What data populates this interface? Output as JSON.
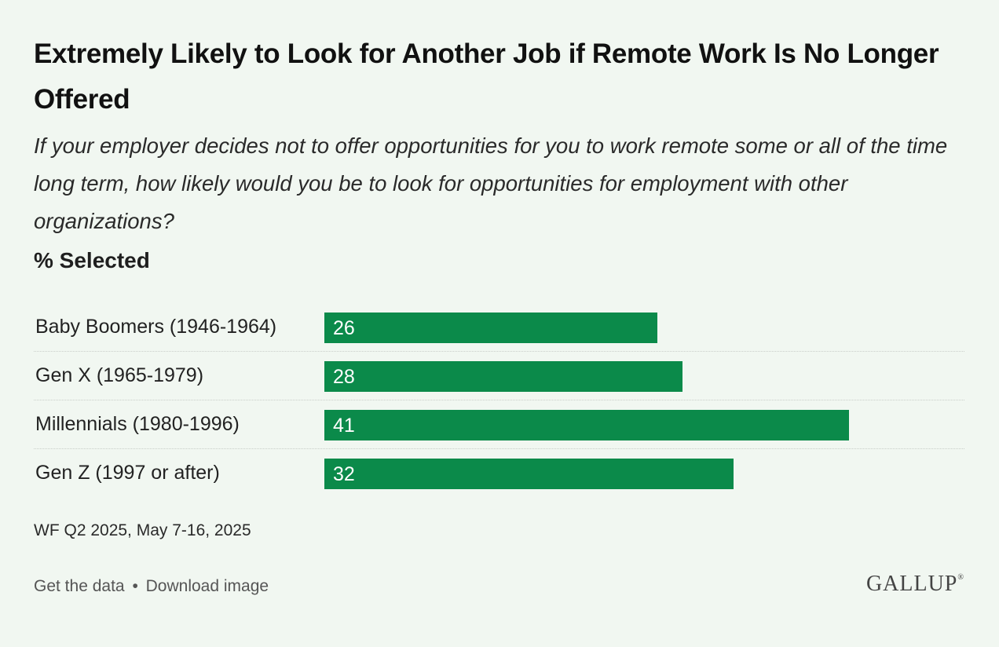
{
  "chart_data": {
    "type": "bar",
    "orientation": "horizontal",
    "title": "Extremely Likely to Look for Another Job if Remote Work Is No Longer Offered",
    "subtitle": "If your employer decides not to offer opportunities for you to work remote some or all of the time long term, how likely would you be to look for opportunities for employment with other organizations?",
    "ylabel": "% Selected",
    "categories": [
      "Baby Boomers (1946-1964)",
      "Gen X (1965-1979)",
      "Millennials (1980-1996)",
      "Gen Z (1997 or after)"
    ],
    "values": [
      26,
      28,
      41,
      32
    ],
    "xlim": [
      0,
      41
    ],
    "bar_color": "#0b8a4a",
    "grid": false,
    "legend": "none"
  },
  "source": "WF Q2 2025, May 7-16, 2025",
  "footer": {
    "get_data": "Get the data",
    "separator": "•",
    "download": "Download image"
  },
  "brand": {
    "logo_text": "GALLUP",
    "logo_mark": "®"
  }
}
